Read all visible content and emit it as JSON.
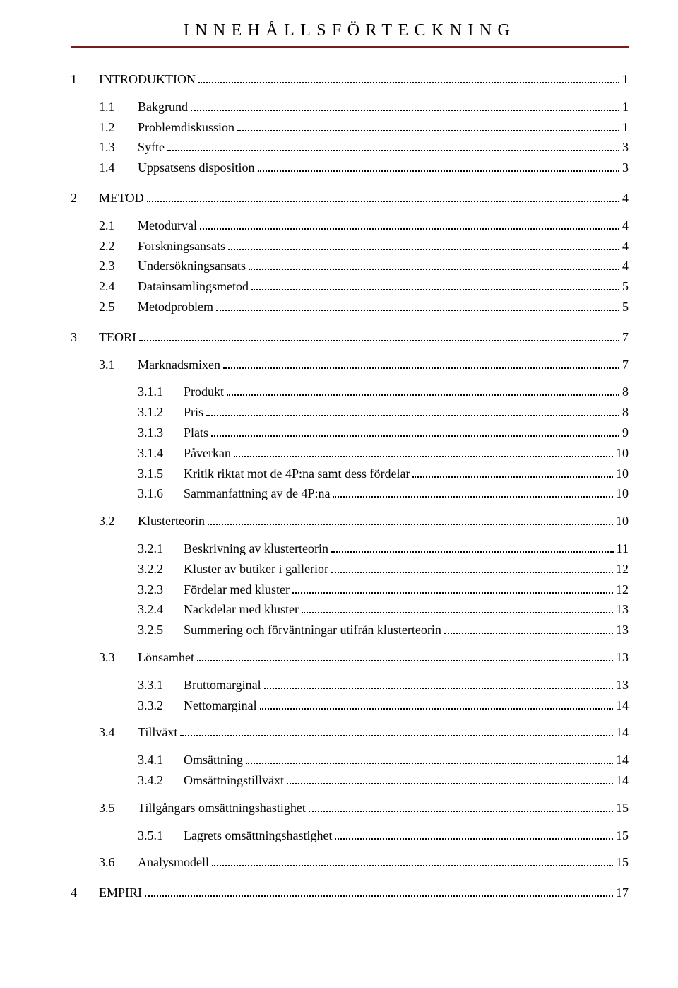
{
  "title": "INNEHÅLLSFÖRTECKNING",
  "colors": {
    "rule": "#7a1b1b",
    "text": "#000000",
    "background": "#ffffff"
  },
  "toc": [
    {
      "level": 1,
      "num": "1",
      "label": "INTRODUKTION",
      "page": "1",
      "gap": "before"
    },
    {
      "level": 2,
      "num": "1.1",
      "label": "Bakgrund",
      "page": "1",
      "gap": "before-small"
    },
    {
      "level": 2,
      "num": "1.2",
      "label": "Problemdiskussion",
      "page": "1"
    },
    {
      "level": 2,
      "num": "1.3",
      "label": "Syfte",
      "page": "3"
    },
    {
      "level": 2,
      "num": "1.4",
      "label": "Uppsatsens disposition",
      "page": "3"
    },
    {
      "level": 1,
      "num": "2",
      "label": "METOD",
      "page": "4",
      "gap": "before"
    },
    {
      "level": 2,
      "num": "2.1",
      "label": "Metodurval",
      "page": "4",
      "gap": "before-small"
    },
    {
      "level": 2,
      "num": "2.2",
      "label": "Forskningsansats",
      "page": "4"
    },
    {
      "level": 2,
      "num": "2.3",
      "label": "Undersökningsansats",
      "page": "4"
    },
    {
      "level": 2,
      "num": "2.4",
      "label": "Datainsamlingsmetod",
      "page": "5"
    },
    {
      "level": 2,
      "num": "2.5",
      "label": "Metodproblem",
      "page": "5"
    },
    {
      "level": 1,
      "num": "3",
      "label": "TEORI",
      "page": "7",
      "gap": "before"
    },
    {
      "level": 2,
      "num": "3.1",
      "label": "Marknadsmixen",
      "page": "7",
      "gap": "before-small"
    },
    {
      "level": 3,
      "num": "3.1.1",
      "label": "Produkt",
      "page": "8",
      "gap": "before-small"
    },
    {
      "level": 3,
      "num": "3.1.2",
      "label": "Pris",
      "page": "8"
    },
    {
      "level": 3,
      "num": "3.1.3",
      "label": "Plats",
      "page": "9"
    },
    {
      "level": 3,
      "num": "3.1.4",
      "label": "Påverkan",
      "page": "10"
    },
    {
      "level": 3,
      "num": "3.1.5",
      "label": "Kritik riktat mot de 4P:na samt dess fördelar",
      "page": "10"
    },
    {
      "level": 3,
      "num": "3.1.6",
      "label": "Sammanfattning av de 4P:na",
      "page": "10"
    },
    {
      "level": 2,
      "num": "3.2",
      "label": "Klusterteorin",
      "page": "10",
      "gap": "before-small"
    },
    {
      "level": 3,
      "num": "3.2.1",
      "label": "Beskrivning av klusterteorin",
      "page": "11",
      "gap": "before-small"
    },
    {
      "level": 3,
      "num": "3.2.2",
      "label": "Kluster av butiker i gallerior",
      "page": "12"
    },
    {
      "level": 3,
      "num": "3.2.3",
      "label": "Fördelar med kluster",
      "page": "12"
    },
    {
      "level": 3,
      "num": "3.2.4",
      "label": "Nackdelar med kluster",
      "page": "13"
    },
    {
      "level": 3,
      "num": "3.2.5",
      "label": "Summering och förväntningar utifrån klusterteorin",
      "page": "13"
    },
    {
      "level": 2,
      "num": "3.3",
      "label": "Lönsamhet",
      "page": "13",
      "gap": "before-small"
    },
    {
      "level": 3,
      "num": "3.3.1",
      "label": "Bruttomarginal",
      "page": "13",
      "gap": "before-small"
    },
    {
      "level": 3,
      "num": "3.3.2",
      "label": "Nettomarginal",
      "page": "14"
    },
    {
      "level": 2,
      "num": "3.4",
      "label": "Tillväxt",
      "page": "14",
      "gap": "before-small"
    },
    {
      "level": 3,
      "num": "3.4.1",
      "label": "Omsättning",
      "page": "14",
      "gap": "before-small"
    },
    {
      "level": 3,
      "num": "3.4.2",
      "label": "Omsättningstillväxt",
      "page": "14"
    },
    {
      "level": 2,
      "num": "3.5",
      "label": "Tillgångars omsättningshastighet",
      "page": "15",
      "gap": "before-small"
    },
    {
      "level": 3,
      "num": "3.5.1",
      "label": "Lagrets omsättningshastighet",
      "page": "15",
      "gap": "before-small"
    },
    {
      "level": 2,
      "num": "3.6",
      "label": "Analysmodell",
      "page": "15",
      "gap": "before-small"
    },
    {
      "level": 1,
      "num": "4",
      "label": "EMPIRI",
      "page": "17",
      "gap": "before"
    }
  ]
}
